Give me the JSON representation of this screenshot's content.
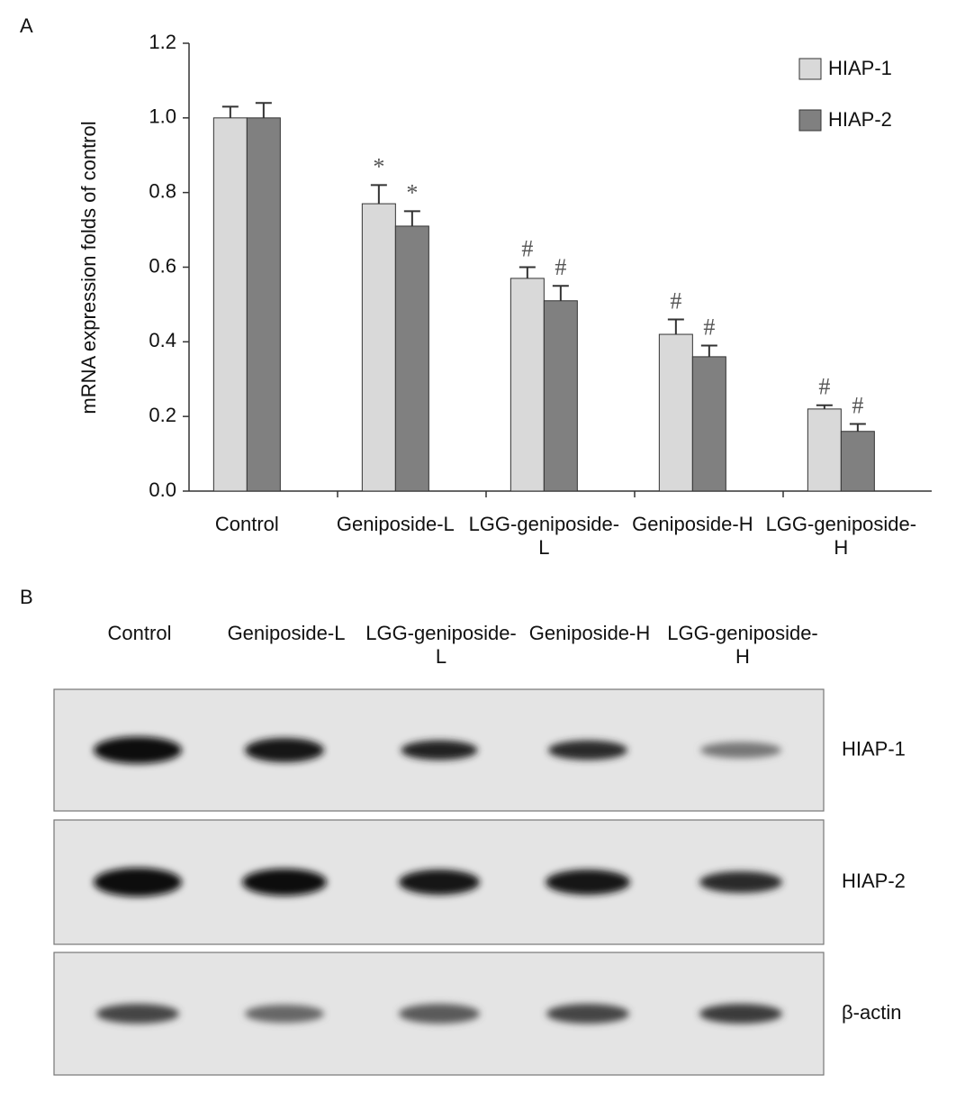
{
  "panel_labels": [
    "A",
    "B"
  ],
  "chart_data": {
    "type": "bar",
    "ylabel": "mRNA expression folds of control",
    "categories": [
      "Control",
      "Geniposide-L",
      "LGG-geniposide-L",
      "Geniposide-H",
      "LGG-geniposide-H"
    ],
    "series": [
      {
        "name": "HIAP-1",
        "color": "#d9d9d9",
        "values": [
          1.0,
          0.77,
          0.57,
          0.42,
          0.22
        ],
        "errors": [
          0.03,
          0.05,
          0.03,
          0.04,
          0.01
        ],
        "annotations": [
          null,
          "*",
          "#",
          "#",
          "#"
        ]
      },
      {
        "name": "HIAP-2",
        "color": "#808080",
        "values": [
          1.0,
          0.71,
          0.51,
          0.36,
          0.16
        ],
        "errors": [
          0.04,
          0.04,
          0.04,
          0.03,
          0.02
        ],
        "annotations": [
          null,
          "*",
          "#",
          "#",
          "#"
        ]
      }
    ],
    "ylim": [
      0,
      1.2
    ],
    "yticks": [
      {
        "value": 0,
        "label": "0.0"
      },
      0.2,
      0.4,
      0.6,
      0.8,
      {
        "value": 1,
        "label": "1.0"
      },
      1.2
    ],
    "legend": "top-right",
    "grid": false
  },
  "blot": {
    "columns": [
      "Control",
      "Geniposide-L",
      "LGG-geniposide-L",
      "Geniposide-H",
      "LGG-geniposide-H"
    ],
    "rows": [
      "HIAP-1",
      "HIAP-2",
      "β-actin"
    ]
  }
}
